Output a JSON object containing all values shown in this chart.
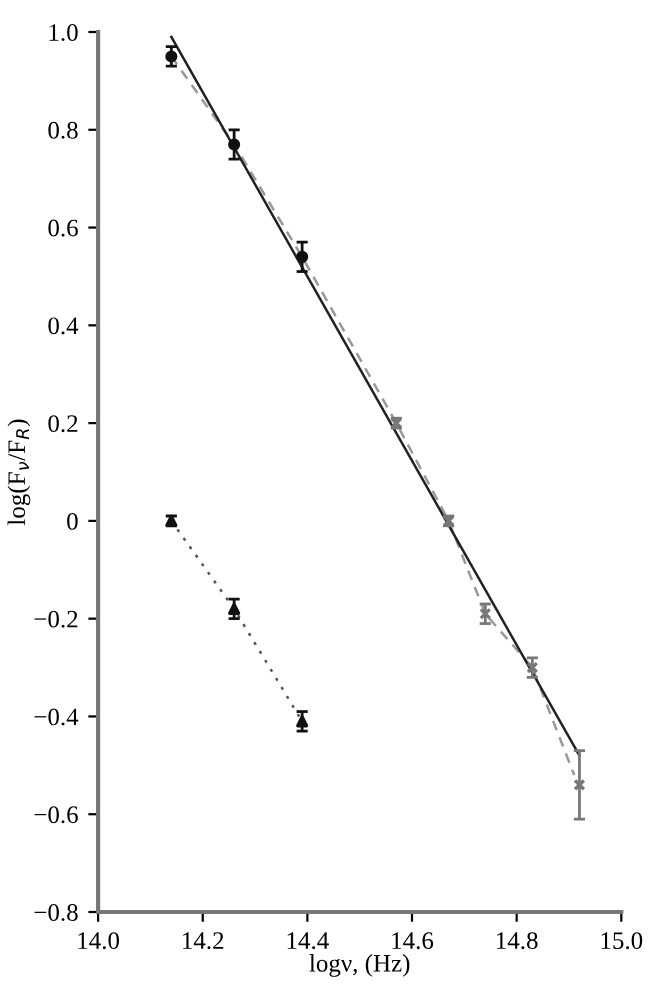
{
  "chart_data": {
    "type": "scatter",
    "xlabel": "logν, (Hz)",
    "ylabel": "log(F$_{ν}$/F$_{R}$)",
    "xlim": [
      14.0,
      15.0
    ],
    "ylim": [
      -0.8,
      1.0
    ],
    "xticks": [
      {
        "value": 14.0,
        "label": "14.0"
      },
      {
        "value": 14.2,
        "label": "14.2"
      },
      {
        "value": 14.4,
        "label": "14.4"
      },
      {
        "value": 14.6,
        "label": "14.6"
      },
      {
        "value": 14.8,
        "label": "14.8"
      },
      {
        "value": 15.0,
        "label": "15.0"
      }
    ],
    "yticks": [
      {
        "value": -0.8,
        "label": "−0.8"
      },
      {
        "value": -0.6,
        "label": "−0.6"
      },
      {
        "value": -0.4,
        "label": "−0.4"
      },
      {
        "value": -0.2,
        "label": "−0.2"
      },
      0,
      {
        "value": 0.2,
        "label": "0.2"
      },
      {
        "value": 0.4,
        "label": "0.4"
      },
      {
        "value": 0.6,
        "label": "0.6"
      },
      {
        "value": 0.8,
        "label": "0.8"
      },
      {
        "value": 1.0,
        "label": "1.0"
      }
    ],
    "grid": false,
    "legend": false,
    "series": [
      {
        "type": "line",
        "line_style": "dashed",
        "marker": "none",
        "color": "#999999",
        "x": [
          14.14,
          14.26,
          14.39,
          14.57,
          14.67,
          14.74,
          14.83,
          14.91
        ],
        "values": [
          0.95,
          0.77,
          0.54,
          0.2,
          0.0,
          -0.19,
          -0.3,
          -0.52
        ]
      },
      {
        "type": "line",
        "line_style": "dotted",
        "marker": "none",
        "color": "#555555",
        "x": [
          14.14,
          14.26,
          14.39
        ],
        "values": [
          0.0,
          -0.18,
          -0.41
        ]
      },
      {
        "type": "line",
        "line_style": "solid",
        "marker": "none",
        "color": "#222222",
        "x": [
          14.14,
          14.92
        ],
        "values": [
          0.99,
          -0.48
        ]
      },
      {
        "marker": "circle",
        "color": "#111111",
        "x": [
          14.14,
          14.26,
          14.39
        ],
        "values": [
          0.95,
          0.77,
          0.54
        ],
        "errors": [
          0.02,
          0.03,
          0.03
        ]
      },
      {
        "marker": "cross",
        "color": "#777777",
        "x": [
          14.57,
          14.67,
          14.74,
          14.83,
          14.92
        ],
        "values": [
          0.2,
          0.0,
          -0.19,
          -0.3,
          -0.54
        ],
        "errors": [
          0.01,
          0.01,
          0.02,
          0.02,
          0.07
        ]
      },
      {
        "marker": "triangle",
        "color": "#111111",
        "x": [
          14.14,
          14.26,
          14.39
        ],
        "values": [
          0.0,
          -0.18,
          -0.41
        ],
        "errors": [
          0.01,
          0.02,
          0.02
        ]
      }
    ]
  }
}
